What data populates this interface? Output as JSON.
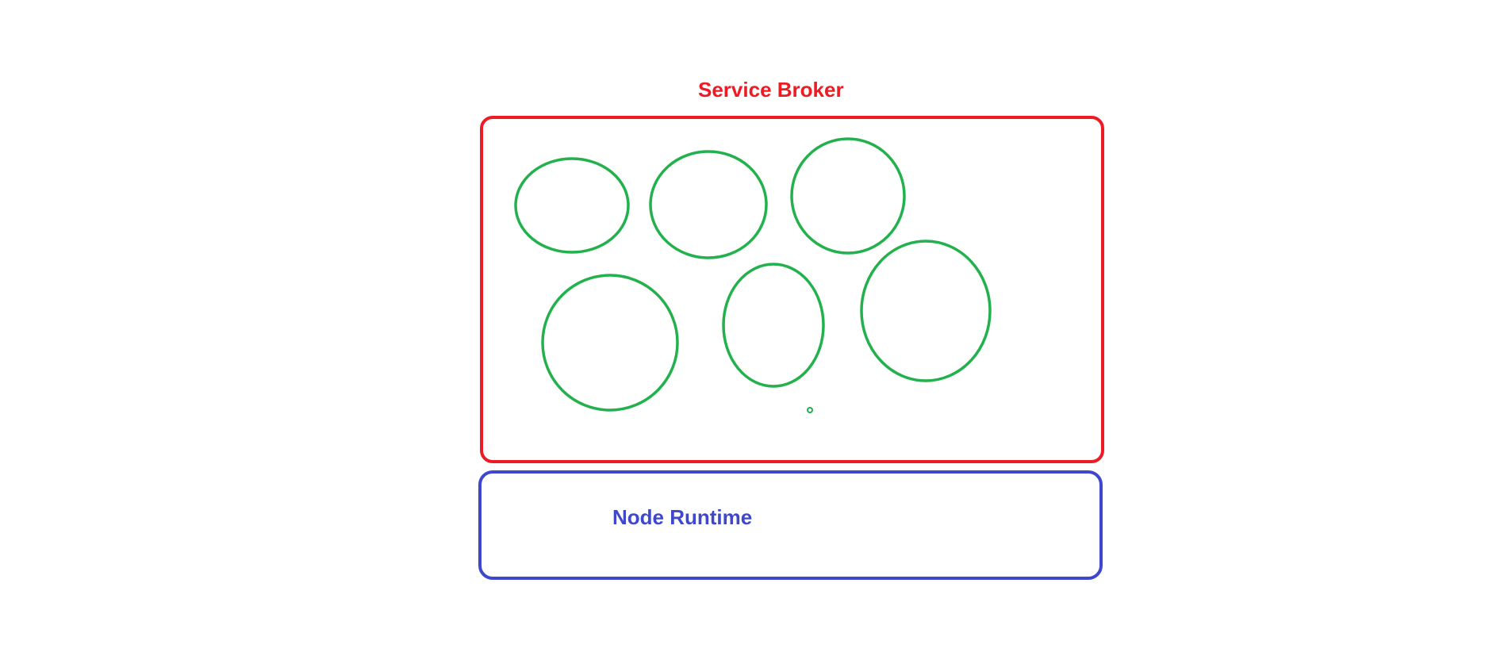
{
  "service_broker": {
    "title": "Service Broker",
    "border_color": "#ed1c24"
  },
  "node_runtime": {
    "title": "Node Runtime",
    "border_color": "#3f48cc"
  },
  "service_nodes": {
    "count_large": 6,
    "count_small": 1,
    "stroke_color": "#22b14c"
  }
}
